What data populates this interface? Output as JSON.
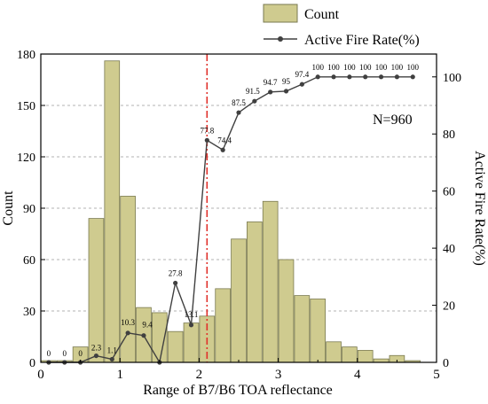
{
  "chart_data": {
    "type": "bar+line",
    "xlabel": "Range of B7/B6 TOA reflectance",
    "ylabel": "Count",
    "y2label": "Active Fire Rate(%)",
    "xlim": [
      0,
      5
    ],
    "ylim": [
      0,
      180
    ],
    "y2lim": [
      0,
      108
    ],
    "x_ticks": [
      0,
      1,
      2,
      3,
      4,
      5
    ],
    "y_ticks": [
      0,
      30,
      60,
      90,
      120,
      150,
      180
    ],
    "y2_ticks": [
      0,
      20,
      40,
      60,
      80,
      100
    ],
    "bar_color": "#cfcb8f",
    "bar_stroke": "#7a7a50",
    "line_color": "#404040",
    "threshold_color": "#e0302a",
    "threshold_x": 2.1,
    "grid": "horizontal dashed",
    "legend_position": "top",
    "annotation": "N=960",
    "series": [
      {
        "name": "Count",
        "kind": "bar",
        "x": [
          0.1,
          0.3,
          0.5,
          0.7,
          0.9,
          1.1,
          1.3,
          1.5,
          1.7,
          1.9,
          2.1,
          2.3,
          2.5,
          2.7,
          2.9,
          3.1,
          3.3,
          3.5,
          3.7,
          3.9,
          4.1,
          4.3,
          4.5,
          4.7
        ],
        "values": [
          1,
          1,
          9,
          84,
          176,
          97,
          32,
          29,
          18,
          23,
          27,
          43,
          72,
          82,
          94,
          60,
          39,
          37,
          12,
          9,
          7,
          2,
          4,
          1
        ]
      },
      {
        "name": "Active Fire Rate(%)",
        "kind": "line",
        "x": [
          0.1,
          0.3,
          0.5,
          0.7,
          0.9,
          1.1,
          1.3,
          1.5,
          1.7,
          1.9,
          2.1,
          2.3,
          2.5,
          2.7,
          2.9,
          3.1,
          3.3,
          3.5,
          3.7,
          3.9,
          4.1,
          4.3,
          4.5,
          4.7
        ],
        "values": [
          0,
          0,
          0,
          2.3,
          1.1,
          10.3,
          9.4,
          0,
          27.8,
          13.1,
          77.8,
          74.4,
          87.5,
          91.5,
          94.7,
          95,
          97.4,
          100,
          100,
          100,
          100,
          100,
          100,
          100
        ],
        "labels": [
          "0",
          "0",
          "0",
          "2.3",
          "1.1",
          "10.3",
          "9.4",
          "",
          "27.8",
          "13.1",
          "77.8",
          "74.4",
          "87.5",
          "91.5",
          "94.7",
          "95",
          "97.4",
          "100",
          "100",
          "100",
          "100",
          "100",
          "100",
          "100"
        ]
      }
    ]
  }
}
